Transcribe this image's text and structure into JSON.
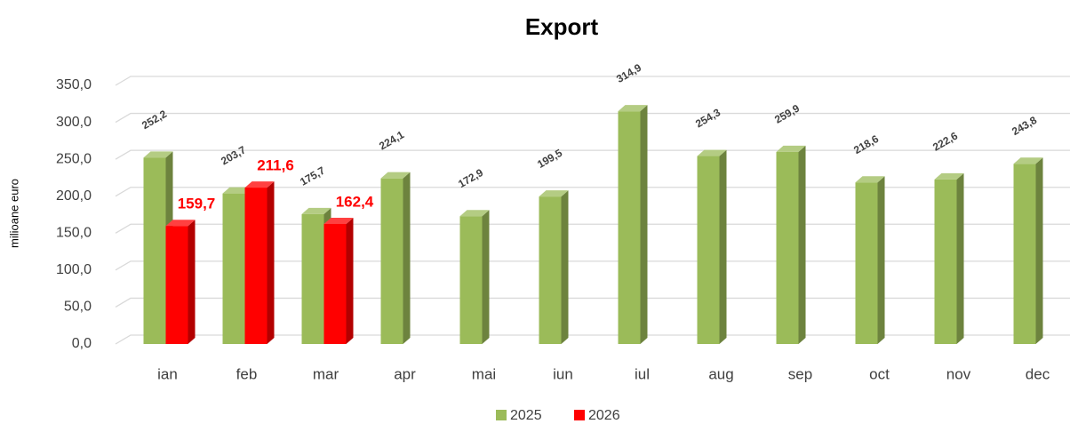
{
  "chart_data": {
    "type": "bar3d",
    "title": "Export",
    "y_label": "milioane euro",
    "categories": [
      "ian",
      "feb",
      "mar",
      "apr",
      "mai",
      "iun",
      "iul",
      "aug",
      "sep",
      "oct",
      "nov",
      "dec"
    ],
    "series": [
      {
        "name": "2025",
        "color": "#9bbb59",
        "values": [
          252.2,
          203.7,
          175.7,
          224.1,
          172.9,
          199.5,
          314.9,
          254.3,
          259.9,
          218.6,
          222.6,
          243.8
        ],
        "value_labels": [
          "252,2",
          "203,7",
          "175,7",
          "224,1",
          "172,9",
          "199,5",
          "314,9",
          "254,3",
          "259,9",
          "218,6",
          "222,6",
          "243,8"
        ]
      },
      {
        "name": "2026",
        "color": "#ff0000",
        "values": [
          159.7,
          211.6,
          162.4,
          null,
          null,
          null,
          null,
          null,
          null,
          null,
          null,
          null
        ],
        "value_labels": [
          "159,7",
          "211,6",
          "162,4",
          null,
          null,
          null,
          null,
          null,
          null,
          null,
          null,
          null
        ]
      }
    ],
    "ylim": [
      0,
      350
    ],
    "yticks": [
      {
        "value": 0,
        "label": "0,0"
      },
      {
        "value": 50,
        "label": "50,0"
      },
      {
        "value": 100,
        "label": "100,0"
      },
      {
        "value": 150,
        "label": "150,0"
      },
      {
        "value": 200,
        "label": "200,0"
      },
      {
        "value": 250,
        "label": "250,0"
      },
      {
        "value": 300,
        "label": "300,0"
      },
      {
        "value": 350,
        "label": "350,0"
      }
    ],
    "grid": true,
    "legend": "bottom"
  }
}
